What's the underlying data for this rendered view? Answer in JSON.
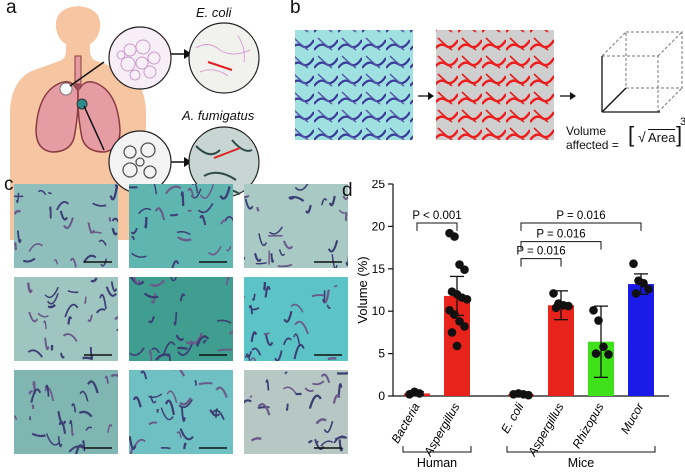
{
  "panels": {
    "a": {
      "label": "a",
      "top_circle_title": "E. coli",
      "bottom_circle_title": "A. fumigatus"
    },
    "b": {
      "label": "b",
      "formula_line1": "Volume",
      "formula_line2": "affected =",
      "formula_area": "Area",
      "formula_exponent": "3"
    },
    "c": {
      "label": "c",
      "tile_colors": [
        "#8fbfbd",
        "#5fb5b0",
        "#a9c9c4",
        "#9fc5c0",
        "#3f9e90",
        "#5cc4c7",
        "#7fb6b2",
        "#6fc0c2",
        "#b7c7c3"
      ]
    },
    "d": {
      "label": "d"
    }
  },
  "chart_data": {
    "type": "bar",
    "ylabel": "Volume (%)",
    "ylim": [
      0,
      25
    ],
    "yticks": [
      "0",
      "5",
      "10",
      "15",
      "20",
      "25"
    ],
    "categories": [
      "Bacteria",
      "Aspergillus",
      "E. coli",
      "Aspergillus",
      "Rhizopus",
      "Mucor"
    ],
    "values": [
      0.3,
      11.8,
      0.2,
      10.7,
      6.4,
      13.2
    ],
    "errors": [
      0.2,
      2.3,
      0.1,
      1.7,
      4.2,
      1.2
    ],
    "bar_colors": [
      "#e8231b",
      "#e8231b",
      "#e8231b",
      "#e8231b",
      "#3fe21a",
      "#1b1be8"
    ],
    "points": [
      [
        0.2,
        0.5,
        0.3
      ],
      [
        19.2,
        18.8,
        15.5,
        14.9,
        12.3,
        12.0,
        11.6,
        11.4,
        10.1,
        9.6,
        8.8,
        8.2,
        7.5,
        5.9
      ],
      [
        0.2,
        0.3,
        0.2,
        0.1
      ],
      [
        12.1,
        10.9,
        10.7,
        10.6,
        10.4
      ],
      [
        10.1,
        8.9,
        5.8,
        4.9,
        5.0
      ],
      [
        15.6,
        13.6,
        13.3,
        12.6,
        12.1
      ]
    ],
    "groups": [
      {
        "name": "Human",
        "from": 0,
        "to": 1
      },
      {
        "name": "Mice",
        "from": 2,
        "to": 5
      }
    ],
    "significance": [
      {
        "from": 0,
        "to": 1,
        "label": "P < 0.001"
      },
      {
        "from": 2,
        "to": 3,
        "label": "P = 0.016"
      },
      {
        "from": 2,
        "to": 4,
        "label": "P = 0.016"
      },
      {
        "from": 2,
        "to": 5,
        "label": "P = 0.016"
      }
    ]
  }
}
